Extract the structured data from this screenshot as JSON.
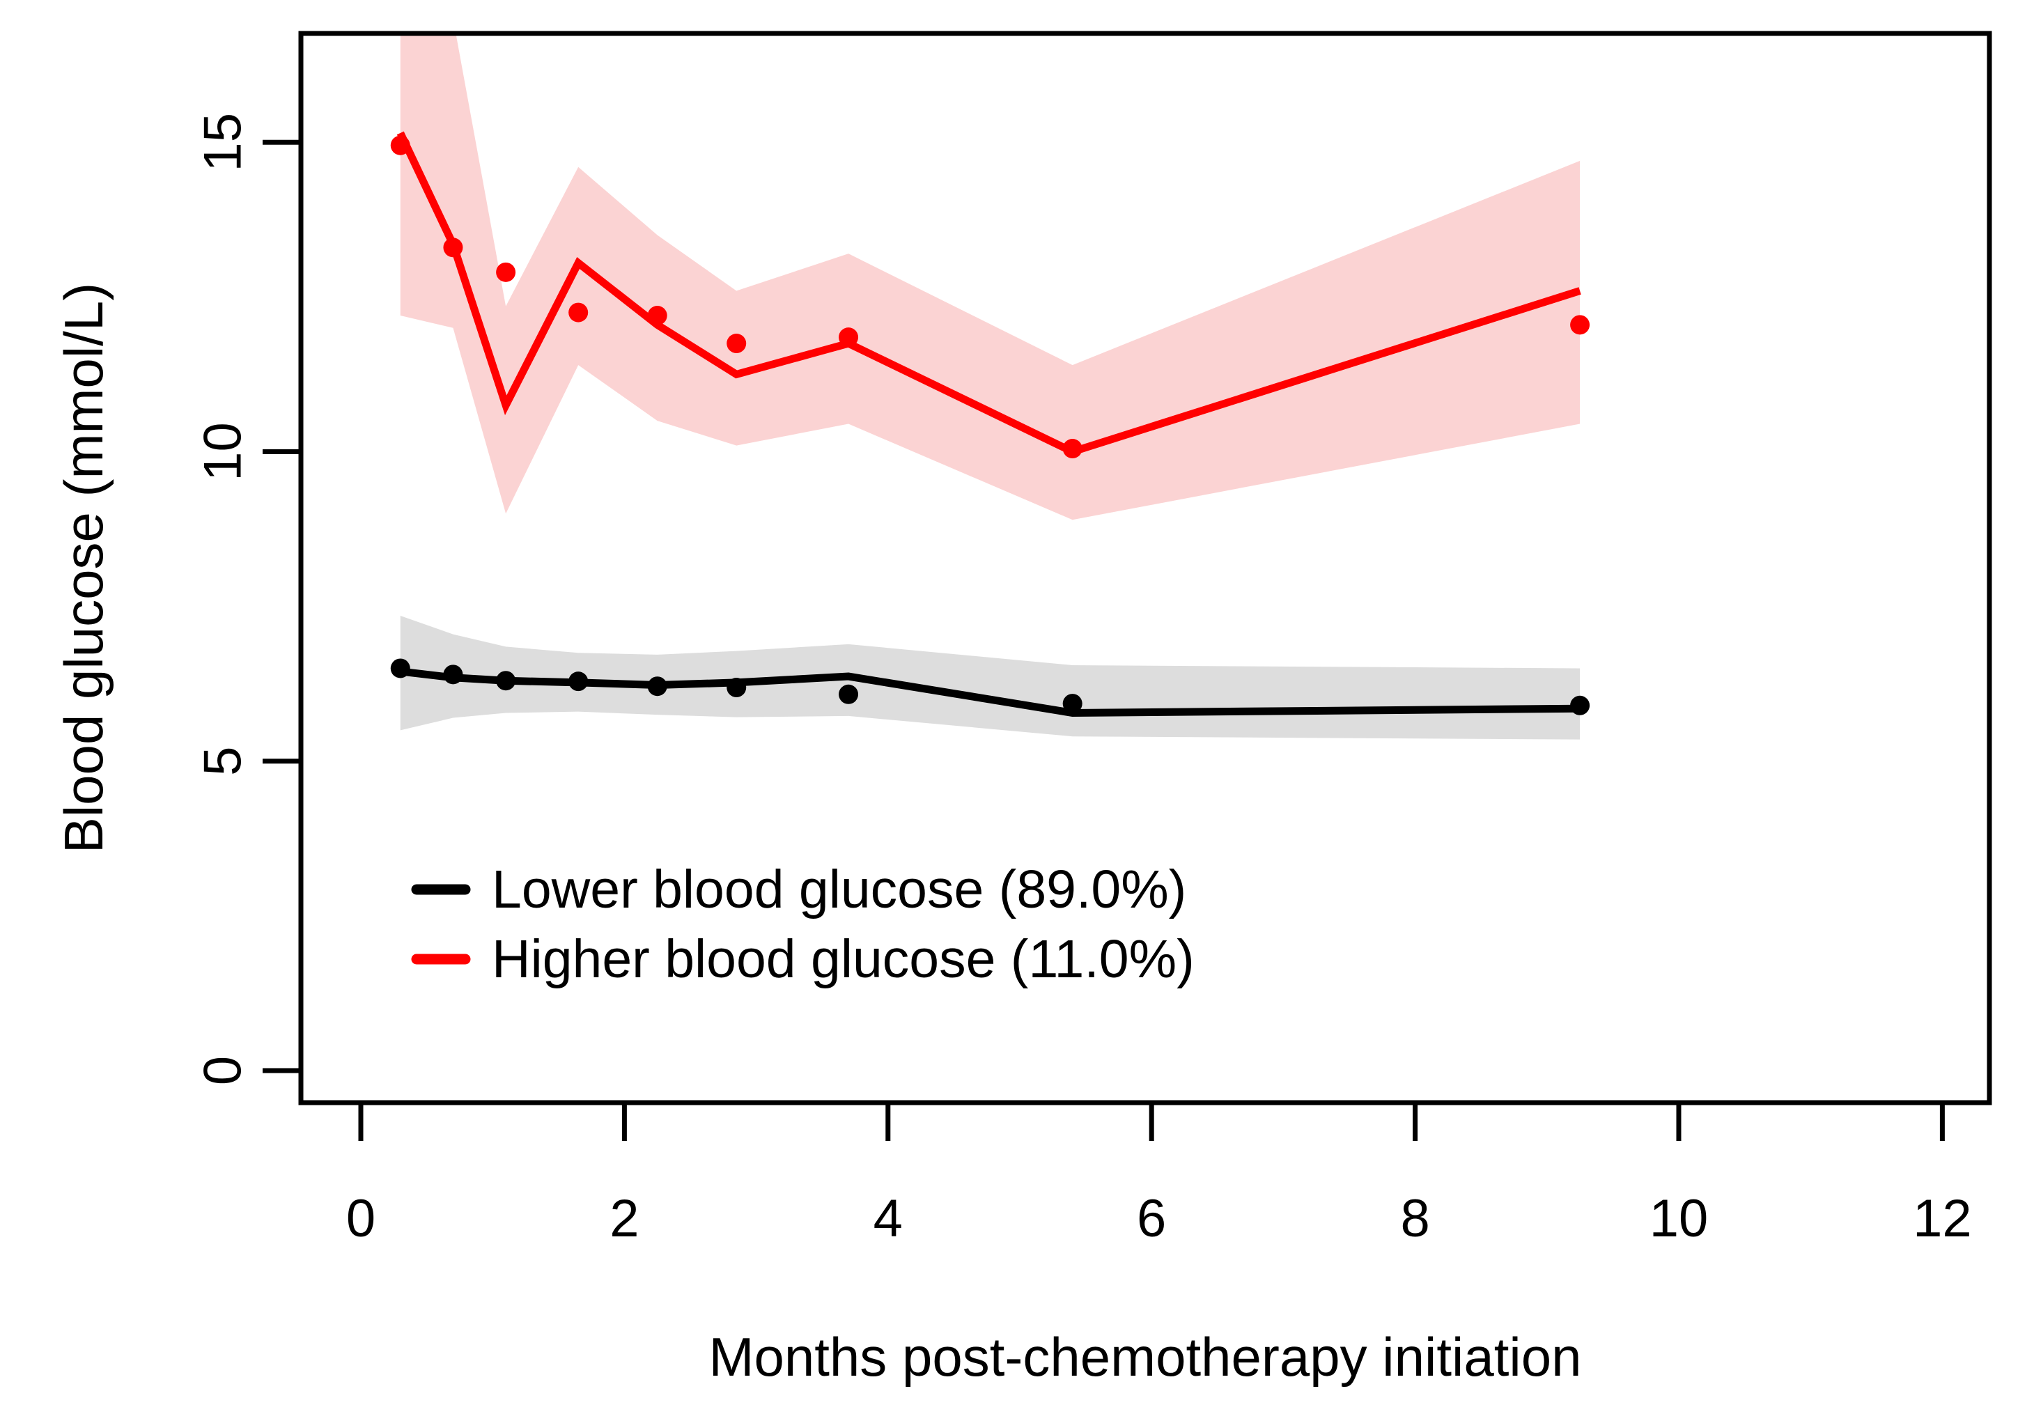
{
  "figure": {
    "background_color": "#ffffff",
    "axis_color": "#000000",
    "x_axis_label": "Months post-chemotherapy initiation",
    "y_axis_label": "Blood glucose (mmol/L)",
    "legend": {
      "items": [
        {
          "label": "Lower blood glucose (89.0%)",
          "color": "#000000"
        },
        {
          "label": "Higher blood glucose (11.0%)",
          "color": "#ff0000"
        }
      ]
    }
  },
  "chart_data": {
    "type": "line",
    "title": "",
    "xlabel": "Months post-chemotherapy initiation",
    "ylabel": "Blood glucose (mmol/L)",
    "x_ticks": [
      0,
      2,
      4,
      6,
      8,
      10,
      12
    ],
    "y_ticks": [
      0,
      5,
      10,
      15
    ],
    "xlim": [
      -0.46,
      12.36
    ],
    "ylim": [
      -0.52,
      16.76
    ],
    "grid": false,
    "legend_position": "inside lower-left",
    "x": [
      0.3,
      0.7,
      1.1,
      1.65,
      2.25,
      2.85,
      3.7,
      5.4,
      9.25
    ],
    "series": [
      {
        "name": "Lower blood glucose (89.0%)",
        "class_share_percent": 89.0,
        "color": "#000000",
        "band_color": "#dddddd",
        "predicted_line": [
          6.45,
          6.35,
          6.3,
          6.27,
          6.23,
          6.27,
          6.37,
          5.78,
          5.85
        ],
        "observed_points": [
          6.5,
          6.4,
          6.3,
          6.29,
          6.21,
          6.19,
          6.08,
          5.93,
          5.9
        ],
        "band_upper": [
          7.35,
          7.05,
          6.85,
          6.75,
          6.72,
          6.78,
          6.89,
          6.55,
          6.5
        ],
        "band_lower": [
          5.5,
          5.7,
          5.78,
          5.8,
          5.75,
          5.71,
          5.73,
          5.4,
          5.35
        ]
      },
      {
        "name": "Higher blood glucose (11.0%)",
        "class_share_percent": 11.0,
        "color": "#ff0000",
        "band_color": "#fbd3d3",
        "predicted_line": [
          15.15,
          13.35,
          10.75,
          13.05,
          12.05,
          11.25,
          11.75,
          10.0,
          12.6
        ],
        "observed_points": [
          14.95,
          13.3,
          12.9,
          12.25,
          12.2,
          11.75,
          11.85,
          10.05,
          12.05
        ],
        "band_upper": [
          17.6,
          17.0,
          12.35,
          14.6,
          13.5,
          12.6,
          13.2,
          11.4,
          14.7
        ],
        "band_lower": [
          12.2,
          12.0,
          9.0,
          11.4,
          10.5,
          10.1,
          10.45,
          8.9,
          10.45
        ]
      }
    ]
  }
}
